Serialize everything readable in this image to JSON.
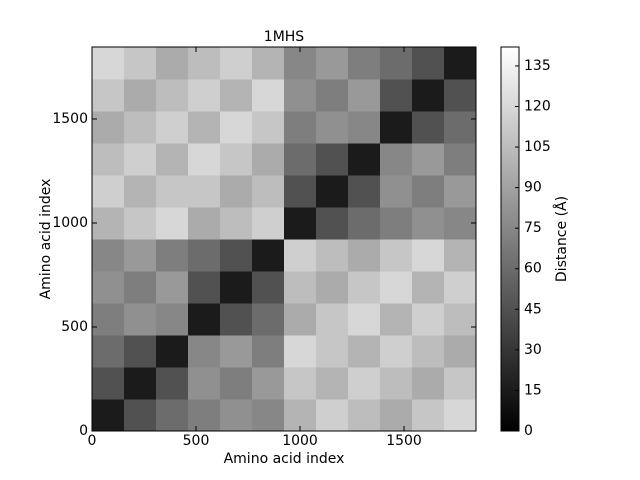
{
  "chart_data": {
    "type": "heatmap",
    "title": "1MHS",
    "x_label": "Amino acid index",
    "y_label": "Amino acid index",
    "xlim": [
      0,
      1846
    ],
    "ylim": [
      0,
      1846
    ],
    "xticks": [
      0,
      500,
      1000,
      1500
    ],
    "yticks": [
      0,
      500,
      1000,
      1500
    ],
    "colormap": "gray",
    "colorbar": {
      "label": "Distance (Å)",
      "clim": [
        0,
        142
      ],
      "ticks": [
        0,
        15,
        30,
        45,
        60,
        75,
        90,
        105,
        120,
        135
      ]
    },
    "z": [
      [
        15,
        45,
        60,
        70,
        80,
        75,
        100,
        115,
        105,
        95,
        110,
        120
      ],
      [
        45,
        15,
        45,
        80,
        70,
        85,
        110,
        100,
        115,
        105,
        95,
        110
      ],
      [
        60,
        45,
        15,
        75,
        85,
        70,
        120,
        110,
        100,
        115,
        105,
        95
      ],
      [
        70,
        80,
        75,
        15,
        45,
        60,
        95,
        110,
        120,
        100,
        115,
        105
      ],
      [
        80,
        70,
        85,
        45,
        15,
        45,
        105,
        95,
        110,
        120,
        100,
        115
      ],
      [
        75,
        85,
        70,
        60,
        45,
        15,
        115,
        105,
        95,
        110,
        120,
        100
      ],
      [
        100,
        110,
        120,
        95,
        105,
        115,
        15,
        45,
        60,
        70,
        80,
        75
      ],
      [
        115,
        100,
        110,
        110,
        95,
        105,
        45,
        15,
        45,
        80,
        70,
        85
      ],
      [
        105,
        115,
        100,
        120,
        110,
        95,
        60,
        45,
        15,
        75,
        85,
        70
      ],
      [
        95,
        105,
        115,
        100,
        120,
        110,
        70,
        80,
        75,
        15,
        45,
        60
      ],
      [
        110,
        95,
        105,
        115,
        100,
        120,
        80,
        70,
        85,
        45,
        15,
        45
      ],
      [
        120,
        110,
        95,
        105,
        115,
        100,
        75,
        85,
        70,
        60,
        45,
        15
      ]
    ]
  }
}
